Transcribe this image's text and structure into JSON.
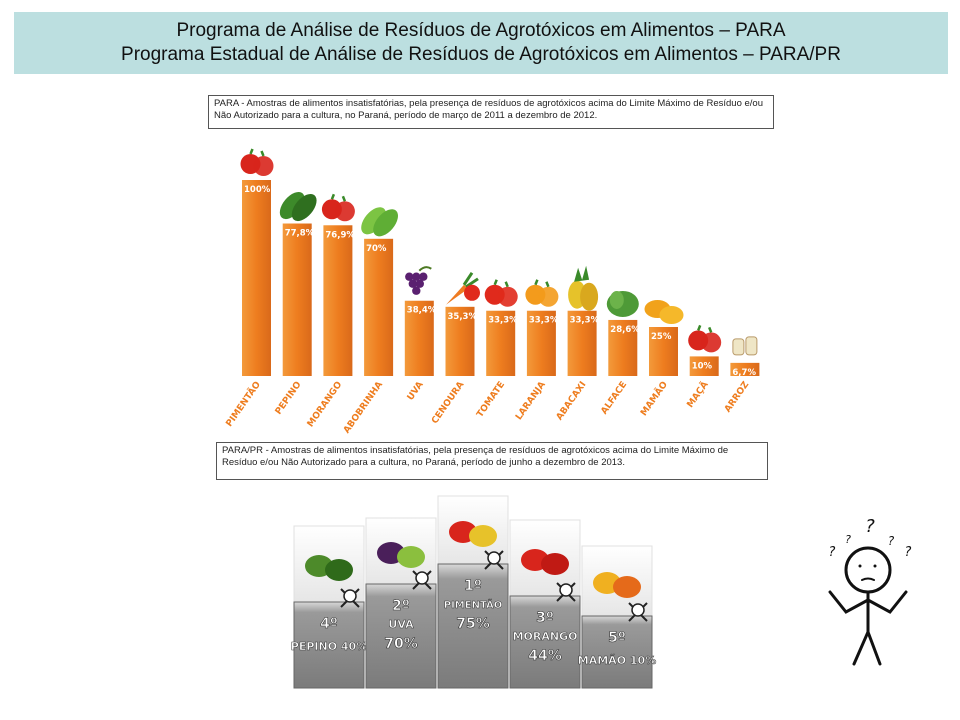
{
  "header": {
    "line1": "Programa de Análise de Resíduos de Agrotóxicos em Alimentos – PARA",
    "line2": "Programa Estadual de Análise de Resíduos de Agrotóxicos em Alimentos – PARA/PR"
  },
  "caption_para": "PARA - Amostras de alimentos insatisfatórias, pela presença de resíduos de agrotóxicos acima do Limite Máximo de Resíduo e/ou Não Autorizado para a cultura, no Paraná, período de março de 2011 a dezembro de 2012.",
  "caption_parapr": "PARA/PR - Amostras de alimentos insatisfatórias, pela presença de resíduos de agrotóxicos acima do Limite Máximo de Resíduo e/ou Não Autorizado para a cultura, no Paraná, período de  junho a dezembro de 2013.",
  "chart_data": [
    {
      "type": "bar",
      "categories": [
        "PIMENTÃO",
        "PEPINO",
        "MORANGO",
        "ABOBRINHA",
        "UVA",
        "CENOURA",
        "TOMATE",
        "LARANJA",
        "ABACAXI",
        "ALFACE",
        "MAMÃO",
        "MAÇÃ",
        "ARROZ"
      ],
      "values": [
        100,
        77.8,
        76.9,
        70,
        38.4,
        35.3,
        33.3,
        33.3,
        33.3,
        28.6,
        25,
        10,
        6.7
      ],
      "labels": [
        "100%",
        "77,8%",
        "76,9%",
        "70%",
        "38,4%",
        "35,3%",
        "33,3%",
        "33,3%",
        "33,3%",
        "28,6%",
        "25%",
        "10%",
        "6,7%"
      ],
      "ylim": [
        0,
        100
      ],
      "bar_color": "#ee7d1f",
      "grid": false
    },
    {
      "type": "bar",
      "categories": [
        "PEPINO",
        "UVA",
        "PIMENTÃO",
        "MORANGO",
        "MAMÃO"
      ],
      "ranks": [
        "4º",
        "2º",
        "1º",
        "3º",
        "5º"
      ],
      "values": [
        40,
        70,
        75,
        44,
        10
      ],
      "labels": [
        "40%",
        "70%",
        "75%",
        "44%",
        "10%"
      ],
      "bar_color": "#8f8f8f"
    }
  ],
  "thinker": {
    "marks": [
      "?",
      "?",
      "?",
      "?",
      "?"
    ]
  }
}
